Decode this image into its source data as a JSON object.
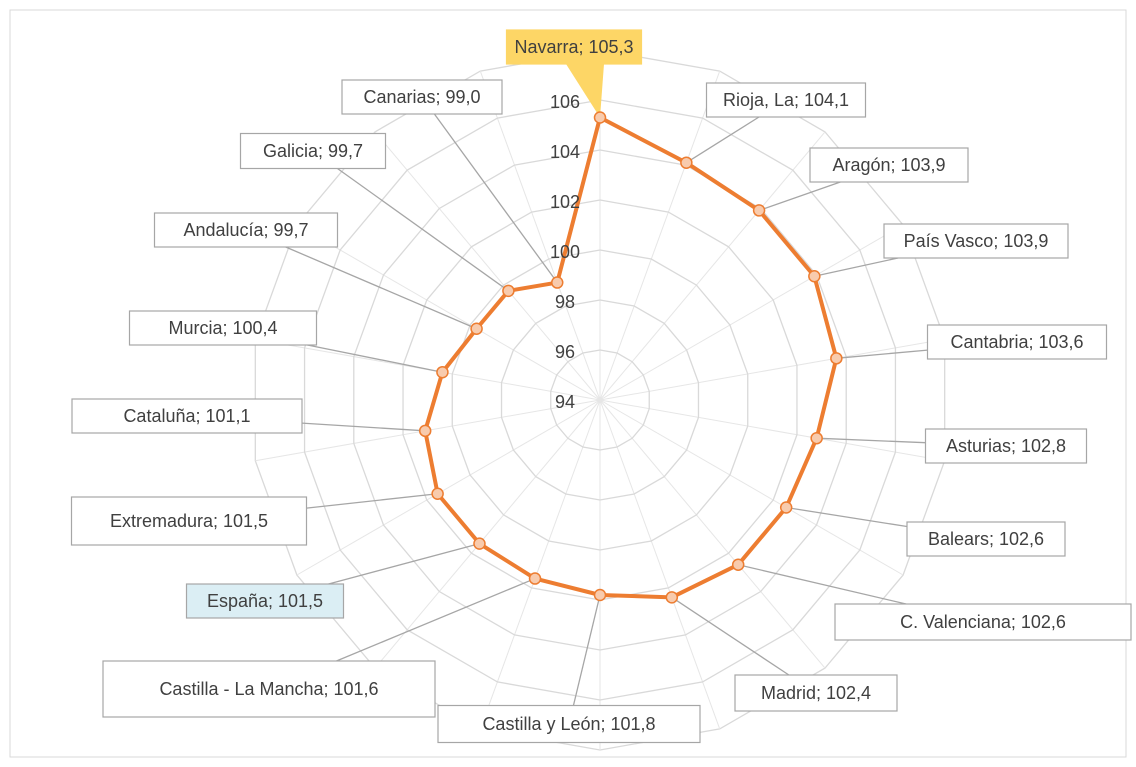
{
  "chart_data": {
    "type": "radar",
    "values": [
      105.3,
      104.1,
      103.9,
      103.9,
      103.6,
      102.8,
      102.6,
      102.6,
      102.4,
      101.8,
      101.6,
      101.5,
      101.5,
      101.1,
      100.4,
      99.7,
      99.7,
      99.0
    ],
    "value_labels": [
      "Navarra; 105,3",
      "Rioja, La; 104,1",
      "Aragón; 103,9",
      "País Vasco; 103,9",
      "Cantabria; 103,6",
      "Asturias; 102,8",
      "Balears; 102,6",
      "C. Valenciana; 102,6",
      "Madrid; 102,4",
      "Castilla y León; 101,8",
      "Castilla - La Mancha; 101,6",
      "España; 101,5",
      "Extremadura; 101,5",
      "Cataluña; 101,1",
      "Murcia; 100,4",
      "Andalucía; 99,7",
      "Galicia; 99,7",
      "Canarias; 99,0"
    ],
    "color": "#ed7d31",
    "label_fills": [
      "#fdd666",
      "#ffffff",
      "#ffffff",
      "#ffffff",
      "#ffffff",
      "#ffffff",
      "#ffffff",
      "#ffffff",
      "#ffffff",
      "#ffffff",
      "#ffffff",
      "#dbeef4",
      "#ffffff",
      "#ffffff",
      "#ffffff",
      "#ffffff",
      "#ffffff",
      "#ffffff"
    ],
    "ylim": [
      94,
      108
    ],
    "yticks": [
      94,
      96,
      98,
      100,
      102,
      104,
      106
    ],
    "grid": true
  }
}
